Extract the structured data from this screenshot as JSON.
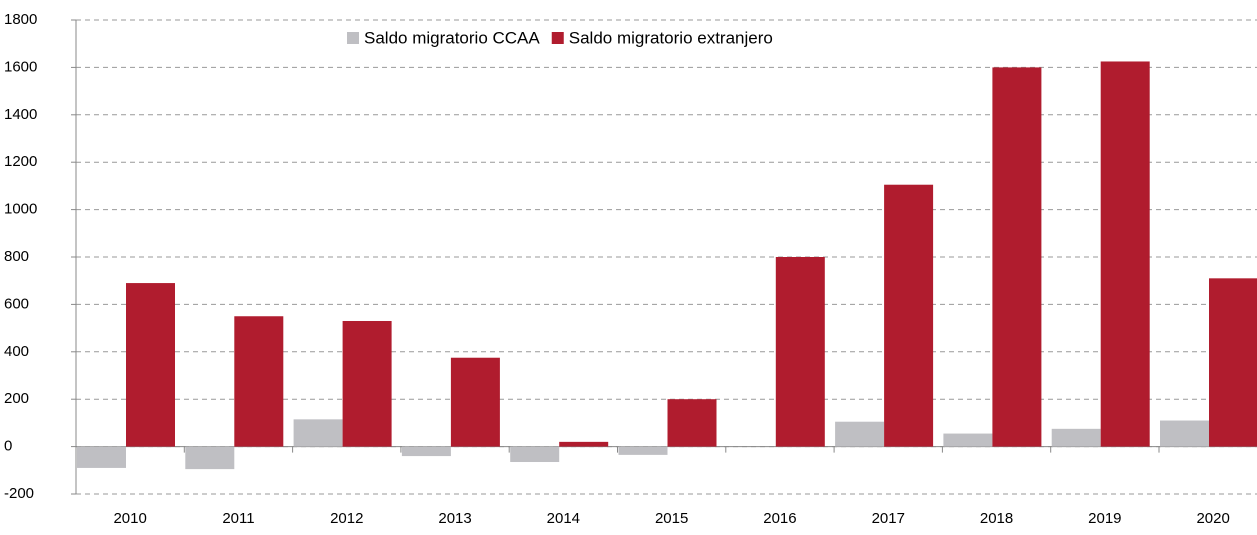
{
  "chart_data": {
    "type": "bar",
    "categories": [
      "2010",
      "2011",
      "2012",
      "2013",
      "2014",
      "2015",
      "2016",
      "2017",
      "2018",
      "2019",
      "2020"
    ],
    "series": [
      {
        "name": "Saldo migratorio CCAA",
        "color": "#bfbfc3",
        "values": [
          -90,
          -95,
          115,
          -40,
          -65,
          -35,
          0,
          105,
          55,
          75,
          110
        ]
      },
      {
        "name": "Saldo migratorio extranjero",
        "color": "#b01c2e",
        "values": [
          690,
          550,
          530,
          375,
          20,
          200,
          800,
          1105,
          1600,
          1625,
          710
        ]
      }
    ],
    "ylim": [
      -200,
      1800
    ],
    "yticks": [
      -200,
      0,
      200,
      400,
      600,
      800,
      1000,
      1200,
      1400,
      1600,
      1800
    ],
    "grid": true,
    "legend": "top"
  }
}
